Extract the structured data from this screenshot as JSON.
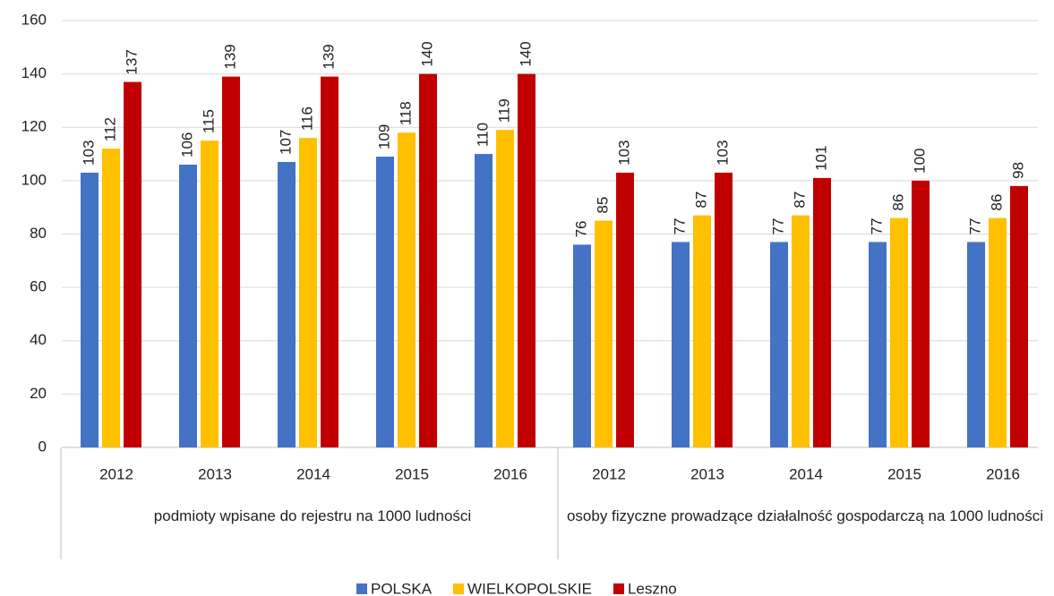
{
  "chart_data": {
    "type": "bar",
    "groups": [
      {
        "label": "podmioty wpisane do rejestru na 1000 ludności",
        "categories": [
          "2012",
          "2013",
          "2014",
          "2015",
          "2016"
        ]
      },
      {
        "label": "osoby fizyczne prowadzące działalność gospodarczą na 1000 ludności",
        "categories": [
          "2012",
          "2013",
          "2014",
          "2015",
          "2016"
        ]
      }
    ],
    "series": [
      {
        "name": "POLSKA",
        "color": "#4472c4",
        "values": [
          103,
          106,
          107,
          109,
          110,
          76,
          77,
          77,
          77,
          77
        ]
      },
      {
        "name": "WIELKOPOLSKIE",
        "color": "#ffc000",
        "values": [
          112,
          115,
          116,
          118,
          119,
          85,
          87,
          87,
          86,
          86
        ]
      },
      {
        "name": "Leszno",
        "color": "#c00000",
        "values": [
          137,
          139,
          139,
          140,
          140,
          103,
          103,
          101,
          100,
          98
        ]
      }
    ],
    "ylim": [
      0,
      160
    ],
    "yticks": [
      0,
      20,
      40,
      60,
      80,
      100,
      120,
      140,
      160
    ],
    "grid": true,
    "legend": "bottom"
  }
}
